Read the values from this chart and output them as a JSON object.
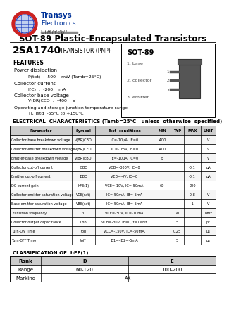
{
  "title": "SOT-89 Plastic-Encapsulated Transistors",
  "part_number": "2SA1740",
  "transistor_type": "TRANSISTOR (PNP)",
  "sot89_box_title": "SOT-89",
  "sot89_pins": [
    "1. base",
    "2. collector",
    "3. emitter"
  ],
  "elec_char_title": "ELECTRICAL  CHARACTERISTICS (Tamb=25°C   unless  otherwise  specified)",
  "table_headers": [
    "Parameter",
    "Symbol",
    "Test  conditions",
    "MIN",
    "TYP",
    "MAX",
    "UNIT"
  ],
  "table_rows": [
    [
      "Collector-base breakdown voltage",
      "V(BR)CBO",
      "IC=-10μA, IE=0",
      "-400",
      "",
      "",
      "V"
    ],
    [
      "Collector-emitter breakdown voltage",
      "V(BR)CEO",
      "IC=-1mA, IB=0",
      "-400",
      "",
      "",
      "V"
    ],
    [
      "Emitter-base breakdown voltage",
      "V(BR)EBO",
      "IE=-10μA, IC=0",
      "-5",
      "",
      "",
      "V"
    ],
    [
      "Collector cut-off current",
      "ICBO",
      "VCB=-300V, IE=0",
      "",
      "",
      "-0.1",
      "μA"
    ],
    [
      "Emitter cut-off current",
      "IEBO",
      "VEB=-4V, IC=0",
      "",
      "",
      "-0.1",
      "μA"
    ],
    [
      "DC current gain",
      "hFE(1)",
      "VCE=-10V, IC=-50mA",
      "60",
      "",
      "200",
      ""
    ],
    [
      "Collector-emitter saturation voltage",
      "VCE(sat)",
      "IC=-50mA, IB=-5mA",
      "",
      "",
      "-0.8",
      "V"
    ],
    [
      "Base-emitter saturation voltage",
      "VBE(sat)",
      "IC=-50mA, IB=-5mA",
      "",
      "",
      "-1",
      "V"
    ],
    [
      "Transition frequency",
      "fT",
      "VCE=-30V, IC=-10mA",
      "",
      "70",
      "",
      "MHz"
    ],
    [
      "Collector output capacitance",
      "Cob",
      "VCB=-30V, IE=0, f=1MHz",
      "",
      "5",
      "",
      "pF"
    ],
    [
      "Turn-ON Time",
      "ton",
      "VCC=-150V, IC=-50mA,",
      "",
      "0.25",
      "",
      "μs"
    ],
    [
      "Turn-OFF Time",
      "toff",
      "IB1=-IB2=-5mA",
      "",
      "5",
      "",
      "μs"
    ]
  ],
  "class_title": "CLASSIFICATION OF  hFE(1)",
  "class_table": [
    [
      "Rank",
      "D",
      "E"
    ],
    [
      "Range",
      "60-120",
      "100-200"
    ],
    [
      "Marking",
      "AK",
      "AK"
    ]
  ],
  "features_line1": "Power dissipation",
  "features_line2": "    P(tot)  :  500    mW (Tamb=25°C)",
  "features_line3": "Collector current",
  "features_line4": "    I(C)  :  -200    mA",
  "features_line5": "Collector-base voltage",
  "features_line6": "    V(BR)CEO  :  -400    V",
  "features_line7": "Operating and storage junction temperature range",
  "features_line8": "    TJ, Tstg  -55°C to +150°C"
}
